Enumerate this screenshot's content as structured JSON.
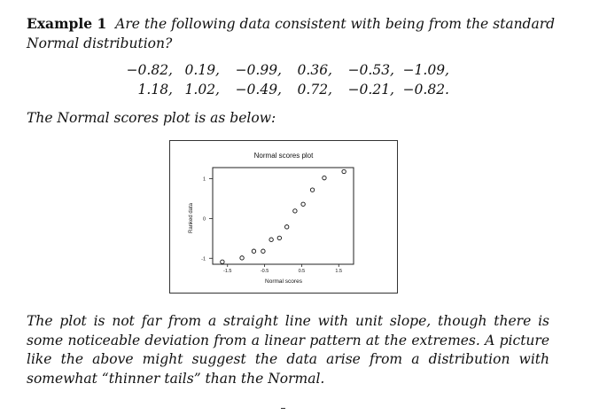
{
  "example": {
    "label": "Example 1",
    "question": "Are the following data consistent with being from the standard Normal distribution?"
  },
  "data_rows": [
    [
      "−0.82,",
      "0.19,",
      "−0.99,",
      "0.36,",
      "−0.53,",
      "−1.09,"
    ],
    [
      "1.18,",
      "1.02,",
      "−0.49,",
      "0.72,",
      "−0.21,",
      "−0.82."
    ]
  ],
  "intro_text": "The Normal scores plot is as below:",
  "chart_data": {
    "type": "scatter",
    "title": "Normal scores plot",
    "xlabel": "Normal scores",
    "ylabel": "Ranked data",
    "xlim": [
      -1.9,
      1.9
    ],
    "ylim": [
      -1.15,
      1.28
    ],
    "xticks": [
      -1.5,
      -0.5,
      0.5,
      1.5
    ],
    "xtick_labels": [
      "-1.5",
      "-0.5",
      "0.5",
      "1.5"
    ],
    "yticks": [
      1,
      0,
      -1
    ],
    "ytick_labels": [
      "1",
      "0",
      "-1"
    ],
    "grid": false,
    "points": [
      {
        "x": -1.64,
        "y": -1.09
      },
      {
        "x": -1.11,
        "y": -0.99
      },
      {
        "x": -0.79,
        "y": -0.82
      },
      {
        "x": -0.54,
        "y": -0.82
      },
      {
        "x": -0.32,
        "y": -0.53
      },
      {
        "x": -0.1,
        "y": -0.49
      },
      {
        "x": 0.1,
        "y": -0.21
      },
      {
        "x": 0.32,
        "y": 0.19
      },
      {
        "x": 0.54,
        "y": 0.36
      },
      {
        "x": 0.79,
        "y": 0.72
      },
      {
        "x": 1.11,
        "y": 1.02
      },
      {
        "x": 1.64,
        "y": 1.18
      }
    ]
  },
  "conclusion_text": "The plot is not far from a straight line with unit slope, though there is some noticeable deviation from a linear pattern at the extremes.  A picture like the above might suggest the data arise from a distribution with somewhat “thinner tails” than the Normal."
}
